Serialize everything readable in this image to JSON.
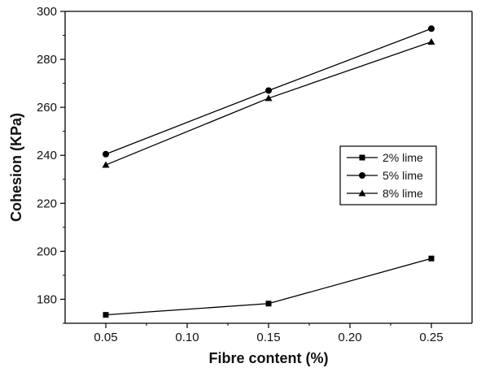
{
  "chart_data": {
    "type": "line",
    "title": "",
    "xlabel": "Fibre content (%)",
    "ylabel": "Cohesion (KPa)",
    "x": [
      0.05,
      0.15,
      0.25
    ],
    "xlim": [
      0.025,
      0.275
    ],
    "ylim": [
      170,
      300
    ],
    "x_ticks": [
      "0.05",
      "0.10",
      "0.15",
      "0.20",
      "0.25"
    ],
    "x_tick_values": [
      0.05,
      0.1,
      0.15,
      0.2,
      0.25
    ],
    "y_ticks": [
      "180",
      "200",
      "220",
      "240",
      "260",
      "280",
      "300"
    ],
    "y_tick_values": [
      180,
      200,
      220,
      240,
      260,
      280,
      300
    ],
    "grid": false,
    "legend_position": "right",
    "series": [
      {
        "name": "2% lime",
        "marker": "square",
        "values": [
          173.5,
          178.2,
          197.0
        ]
      },
      {
        "name": "5% lime",
        "marker": "circle",
        "values": [
          240.5,
          267.0,
          292.8
        ]
      },
      {
        "name": "8% lime",
        "marker": "triangle",
        "values": [
          236.0,
          263.8,
          287.3
        ]
      }
    ]
  }
}
